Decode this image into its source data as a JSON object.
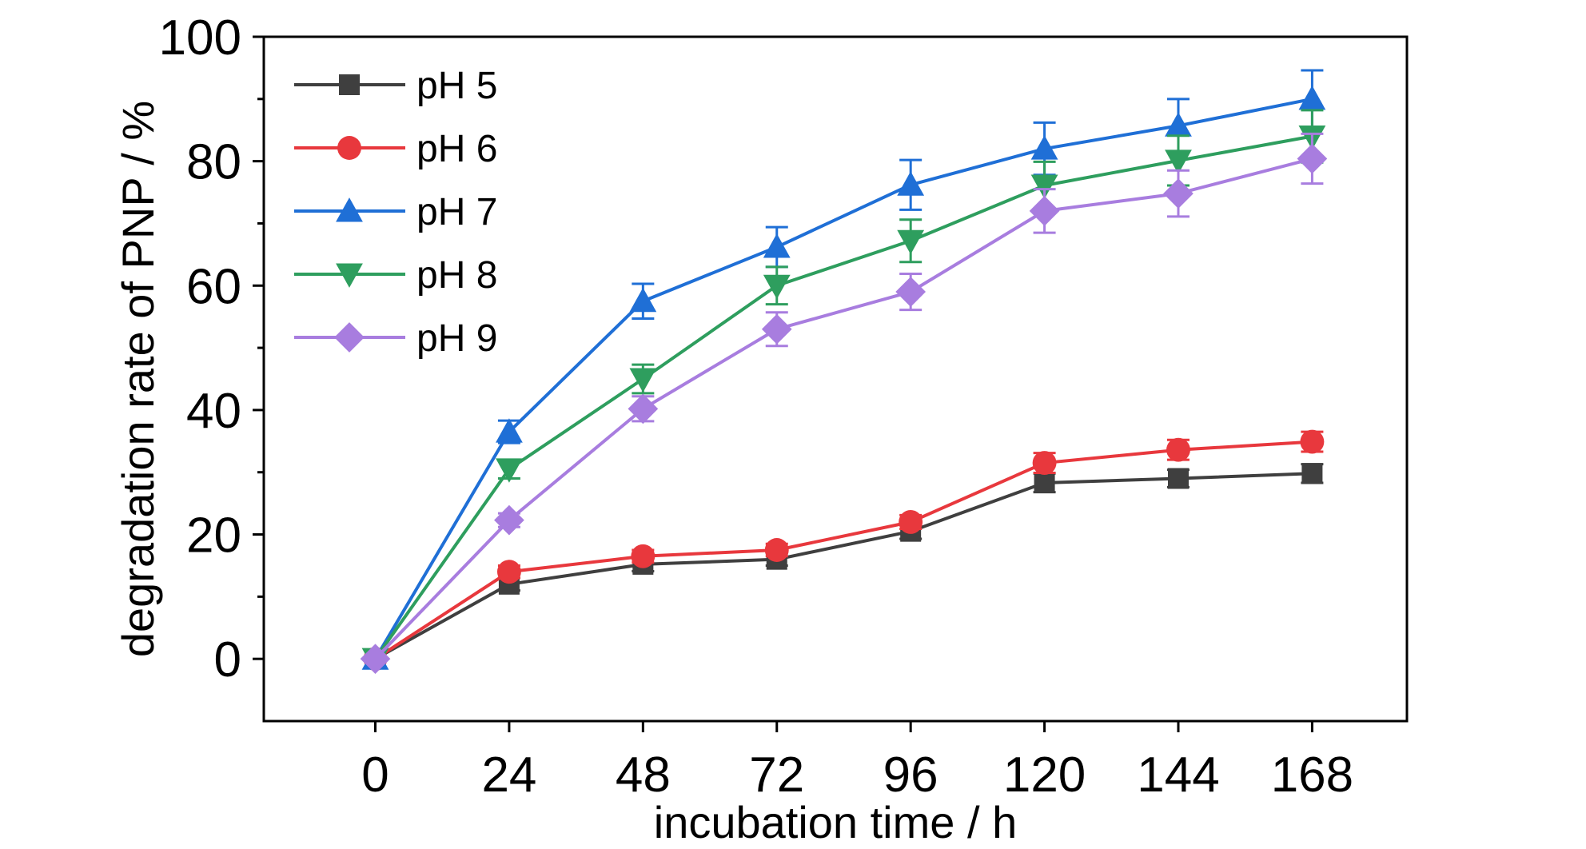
{
  "chart_data": {
    "type": "line",
    "title": "",
    "xlabel": "incubation time / h",
    "ylabel": "degradation rate of PNP / %",
    "x": [
      0,
      24,
      48,
      72,
      96,
      120,
      144,
      168
    ],
    "xlim": [
      -20,
      185
    ],
    "ylim": [
      -10,
      100
    ],
    "yticks": [
      0,
      20,
      40,
      60,
      80,
      100
    ],
    "grid": false,
    "legend_position": "top-left",
    "series": [
      {
        "name": "pH 5",
        "marker": "square",
        "color": "#3f3f3f",
        "values": [
          0,
          12,
          15.2,
          16,
          20.5,
          28.3,
          29,
          29.8
        ],
        "errors": [
          0.3,
          1.0,
          1.1,
          1.0,
          1.2,
          1.5,
          1.4,
          1.5
        ]
      },
      {
        "name": "pH 6",
        "marker": "circle",
        "color": "#e8383d",
        "values": [
          0,
          14,
          16.5,
          17.5,
          22,
          31.5,
          33.6,
          34.9
        ],
        "errors": [
          0.3,
          1.0,
          1.0,
          1.0,
          1.1,
          1.6,
          1.6,
          1.6
        ]
      },
      {
        "name": "pH 7",
        "marker": "triangle-up",
        "color": "#1f6fd6",
        "values": [
          0,
          36.5,
          57.5,
          66.2,
          76.2,
          82,
          85.7,
          90
        ],
        "errors": [
          0.3,
          1.8,
          2.8,
          3.2,
          4.0,
          4.2,
          4.3,
          4.6
        ]
      },
      {
        "name": "pH 8",
        "marker": "triangle-down",
        "color": "#2e9e5e",
        "values": [
          0,
          30.5,
          45,
          60,
          67.2,
          76.1,
          80.1,
          84
        ],
        "errors": [
          0.3,
          1.5,
          2.3,
          3.0,
          3.4,
          3.8,
          4.0,
          4.2
        ]
      },
      {
        "name": "pH 9",
        "marker": "diamond",
        "color": "#a87ddf",
        "values": [
          0,
          22.3,
          40.2,
          53,
          59,
          72,
          74.8,
          80.4
        ],
        "errors": [
          0.3,
          1.1,
          2.0,
          2.7,
          2.9,
          3.5,
          3.7,
          4.0
        ]
      }
    ]
  }
}
